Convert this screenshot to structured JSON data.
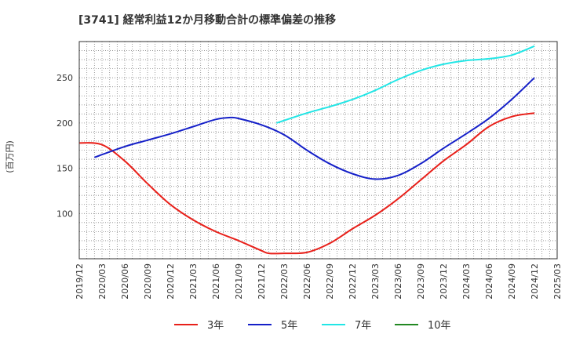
{
  "chart_data": {
    "type": "line",
    "title": "[3741]  経常利益12か月移動合計の標準偏差の推移",
    "ylabel": "(百万円)",
    "xlabel": "",
    "ylim": [
      50,
      290
    ],
    "yticks": [
      100,
      150,
      200,
      250
    ],
    "xlim": [
      "2019/12",
      "2025/03"
    ],
    "xticks": [
      "2019/12",
      "2020/03",
      "2020/06",
      "2020/09",
      "2020/12",
      "2021/03",
      "2021/06",
      "2021/09",
      "2021/12",
      "2022/03",
      "2022/06",
      "2022/09",
      "2022/12",
      "2023/03",
      "2023/06",
      "2023/09",
      "2023/12",
      "2024/03",
      "2024/06",
      "2024/09",
      "2024/12",
      "2025/03"
    ],
    "grid": true,
    "legend_position": "bottom",
    "series": [
      {
        "name": "3年",
        "color": "#e8201a",
        "points": [
          [
            "2019/12",
            178
          ],
          [
            "2020/03",
            176
          ],
          [
            "2020/06",
            158
          ],
          [
            "2020/09",
            133
          ],
          [
            "2020/12",
            110
          ],
          [
            "2021/03",
            93
          ],
          [
            "2021/06",
            80
          ],
          [
            "2021/09",
            70
          ],
          [
            "2021/12",
            59
          ],
          [
            "2022/01",
            56
          ],
          [
            "2022/03",
            56
          ],
          [
            "2022/06",
            57
          ],
          [
            "2022/09",
            67
          ],
          [
            "2022/12",
            83
          ],
          [
            "2023/03",
            98
          ],
          [
            "2023/06",
            116
          ],
          [
            "2023/09",
            137
          ],
          [
            "2023/12",
            158
          ],
          [
            "2024/03",
            176
          ],
          [
            "2024/06",
            196
          ],
          [
            "2024/09",
            207
          ],
          [
            "2024/12",
            211
          ]
        ]
      },
      {
        "name": "5年",
        "color": "#1520c8",
        "points": [
          [
            "2020/02",
            162
          ],
          [
            "2020/06",
            174
          ],
          [
            "2020/09",
            181
          ],
          [
            "2020/12",
            188
          ],
          [
            "2021/03",
            196
          ],
          [
            "2021/06",
            204
          ],
          [
            "2021/08",
            206
          ],
          [
            "2021/09",
            205
          ],
          [
            "2021/12",
            198
          ],
          [
            "2022/03",
            187
          ],
          [
            "2022/06",
            170
          ],
          [
            "2022/09",
            155
          ],
          [
            "2022/12",
            144
          ],
          [
            "2023/03",
            138
          ],
          [
            "2023/06",
            142
          ],
          [
            "2023/09",
            155
          ],
          [
            "2023/12",
            172
          ],
          [
            "2024/03",
            188
          ],
          [
            "2024/06",
            205
          ],
          [
            "2024/09",
            226
          ],
          [
            "2024/12",
            250
          ]
        ]
      },
      {
        "name": "7年",
        "color": "#22e6e6",
        "points": [
          [
            "2022/02",
            200
          ],
          [
            "2022/06",
            211
          ],
          [
            "2022/09",
            218
          ],
          [
            "2022/12",
            226
          ],
          [
            "2023/03",
            236
          ],
          [
            "2023/06",
            248
          ],
          [
            "2023/09",
            258
          ],
          [
            "2023/12",
            265
          ],
          [
            "2024/03",
            269
          ],
          [
            "2024/06",
            271
          ],
          [
            "2024/09",
            275
          ],
          [
            "2024/12",
            285
          ]
        ]
      },
      {
        "name": "10年",
        "color": "#228822",
        "points": []
      }
    ]
  }
}
